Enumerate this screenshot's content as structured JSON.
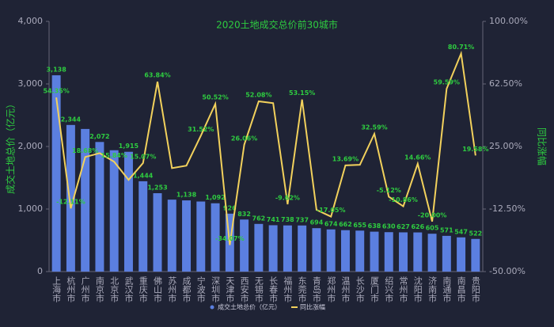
{
  "chart_data": {
    "type": "bar_line",
    "title": "2020土地成交总价前30城市",
    "y_label": "成交土地总价（亿元）",
    "y2_label": "同比涨幅",
    "categories": [
      "上海市",
      "杭州市",
      "广州市",
      "南京市",
      "北京市",
      "武汉市",
      "重庆市",
      "佛山市",
      "苏州市",
      "成都市",
      "宁波市",
      "深圳市",
      "天津市",
      "西安市",
      "无锡市",
      "长春市",
      "福州市",
      "东莞市",
      "青岛市",
      "郑州市",
      "温州市",
      "长沙市",
      "厦门市",
      "绍兴市",
      "常州市",
      "沈阳市",
      "济南市",
      "南通市",
      "南昌市",
      "贵阳市"
    ],
    "series": [
      {
        "name": "成交土地总价（亿元）",
        "color": "#5b7fe0",
        "kind": "bar",
        "values": [
          3138,
          2344,
          2280,
          2072,
          1940,
          1915,
          1444,
          1253,
          1150,
          1138,
          1120,
          1092,
          926,
          832,
          762,
          741,
          738,
          737,
          694,
          674,
          662,
          655,
          638,
          630,
          627,
          626,
          605,
          571,
          547,
          522
        ],
        "value_labels": [
          "3,138",
          "2,344",
          null,
          "2,072",
          null,
          "1,915",
          "1,444",
          "1,253",
          null,
          "1,138",
          null,
          "1,092",
          "926",
          "832",
          "762",
          "741",
          "738",
          "737",
          "694",
          "674",
          "662",
          "655",
          "638",
          "630",
          "627",
          "626",
          "605",
          "571",
          "547",
          "522"
        ]
      },
      {
        "name": "同比涨幅",
        "color": "#f2d15c",
        "kind": "line",
        "axis": "y2",
        "values": [
          54.35,
          -12.11,
          18.68,
          21,
          15.84,
          5,
          15.07,
          63.84,
          12,
          13.5,
          31.52,
          50.52,
          -34.07,
          26.06,
          52.08,
          51,
          -9.62,
          53.15,
          -13,
          -17.05,
          13.69,
          14,
          32.59,
          -5.12,
          -10.86,
          14.66,
          -20,
          59.59,
          80.71,
          19.58
        ],
        "value_labels": [
          "54.35%",
          "-12.11%",
          "18.68%",
          null,
          "15.84%",
          null,
          "15.07%",
          "63.84%",
          null,
          null,
          "31.52%",
          "50.52%",
          "-34.07%",
          "26.06%",
          "52.08%",
          null,
          "-9.62%",
          "53.15%",
          null,
          "-17.05%",
          "13.69%",
          null,
          "32.59%",
          "-5.12%",
          "-10.86%",
          "14.66%",
          "-20.00%",
          "59.59%",
          "80.71%",
          "19.58%"
        ]
      }
    ],
    "ylim": [
      0,
      4000
    ],
    "yticks": [
      0,
      {
        "value": 1000,
        "label": "1,000"
      },
      {
        "value": 2000,
        "label": "2,000"
      },
      {
        "value": 3000,
        "label": "3,000"
      },
      {
        "value": 4000,
        "label": "4,000"
      }
    ],
    "y2lim": [
      -50,
      100
    ],
    "y2ticks": [
      {
        "value": -50,
        "label": "-50.00%"
      },
      {
        "value": -12.5,
        "label": "-12.50%"
      },
      {
        "value": 25,
        "label": "25.00%"
      },
      {
        "value": 62.5,
        "label": "62.50%"
      },
      {
        "value": 100,
        "label": "100.00%"
      }
    ],
    "label_color": "#2ecc40"
  }
}
